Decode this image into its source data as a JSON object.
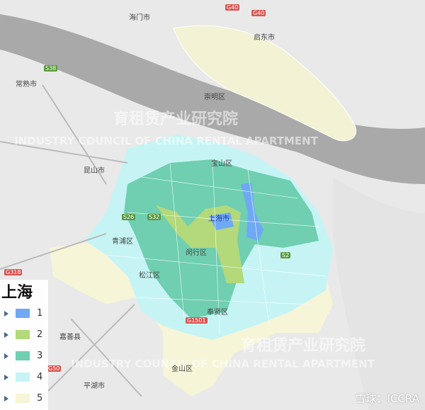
{
  "places": [
    "海门市",
    "启东市",
    "常熟市",
    "崇明区",
    "昆山市",
    "宝山区",
    "上海市",
    "青浦区",
    "闵行区",
    "松江区",
    "奉贤区",
    "嘉善县",
    "金山区",
    "平湖市"
  ],
  "highways": [
    "G40",
    "G40",
    "S38",
    "G318",
    "S26",
    "S32",
    "G1501",
    "S2",
    "G50"
  ],
  "legend": {
    "title": "上海",
    "items": [
      {
        "label": "1",
        "color": "#6fa8f5"
      },
      {
        "label": "2",
        "color": "#b3d97a"
      },
      {
        "label": "3",
        "color": "#6fcfb0"
      },
      {
        "label": "4",
        "color": "#c6f4f4"
      },
      {
        "label": "5",
        "color": "#f6f5d8"
      }
    ]
  },
  "watermark": {
    "cn": "育租赁产业研究院",
    "en": "INDUSTRY COUNCIL OF CHINA RENTAL APARTMENT"
  },
  "credit": "雪球：ICCRA"
}
